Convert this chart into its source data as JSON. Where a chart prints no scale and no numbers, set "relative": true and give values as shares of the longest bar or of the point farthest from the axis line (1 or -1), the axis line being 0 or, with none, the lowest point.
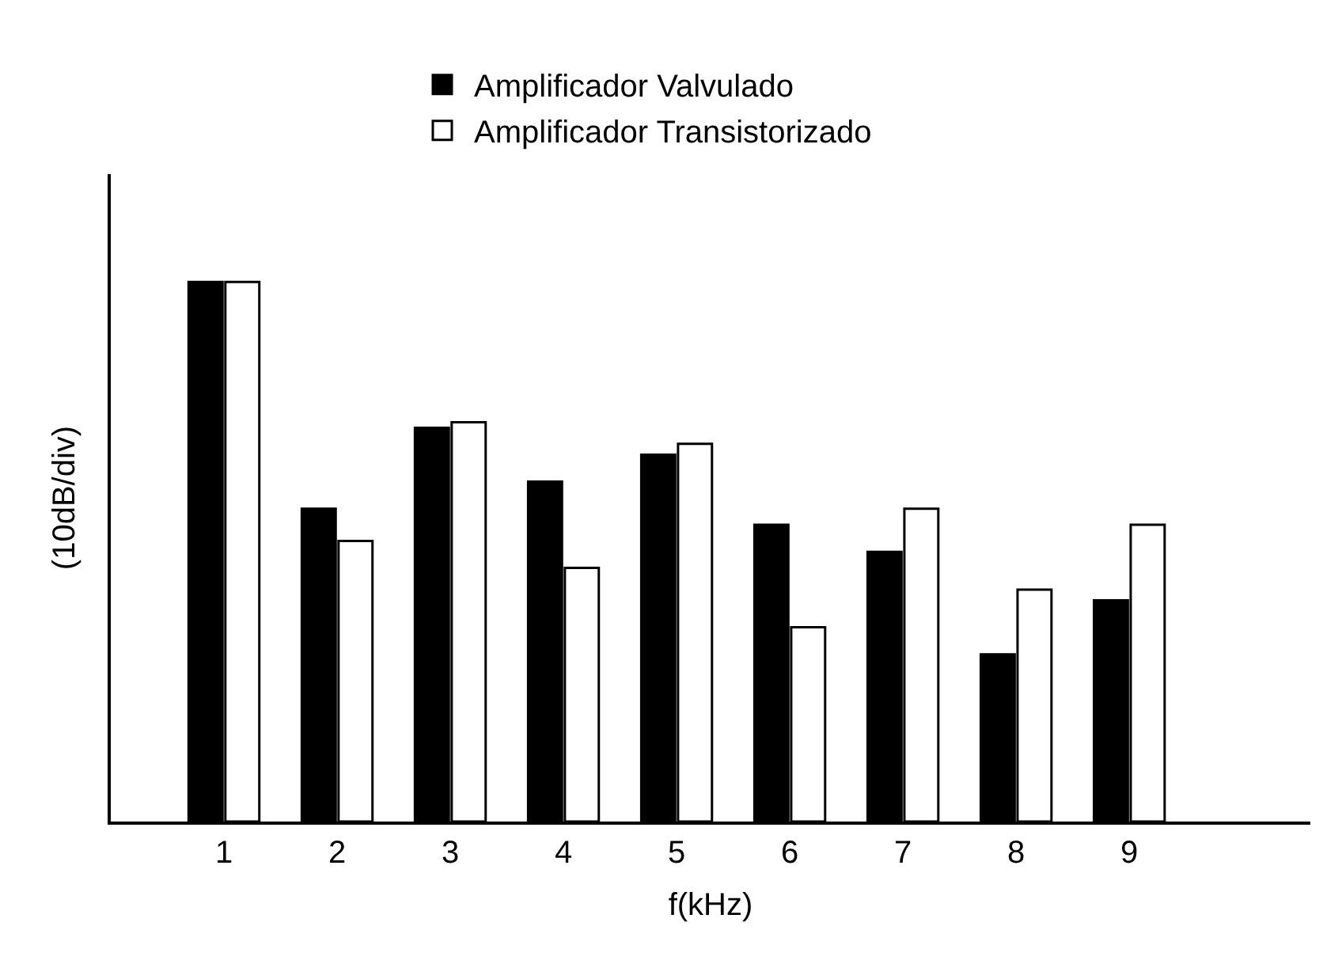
{
  "chart_data": {
    "type": "bar",
    "relative": true,
    "xlabel": "f(kHz)",
    "ylabel": "(10dB/div)",
    "legend": "top",
    "categories": [
      "1",
      "2",
      "3",
      "4",
      "5",
      "6",
      "7",
      "8",
      "9"
    ],
    "series": [
      {
        "name": "Amplificador Valvulado",
        "color": "#000000",
        "values": [
          1,
          0.58,
          0.73,
          0.63,
          0.68,
          0.55,
          0.5,
          0.31,
          0.41
        ]
      },
      {
        "name": "Amplificador Transistorizado",
        "color": "#ffffff",
        "values": [
          1,
          0.52,
          0.74,
          0.47,
          0.7,
          0.36,
          0.58,
          0.43,
          0.55
        ]
      }
    ]
  }
}
